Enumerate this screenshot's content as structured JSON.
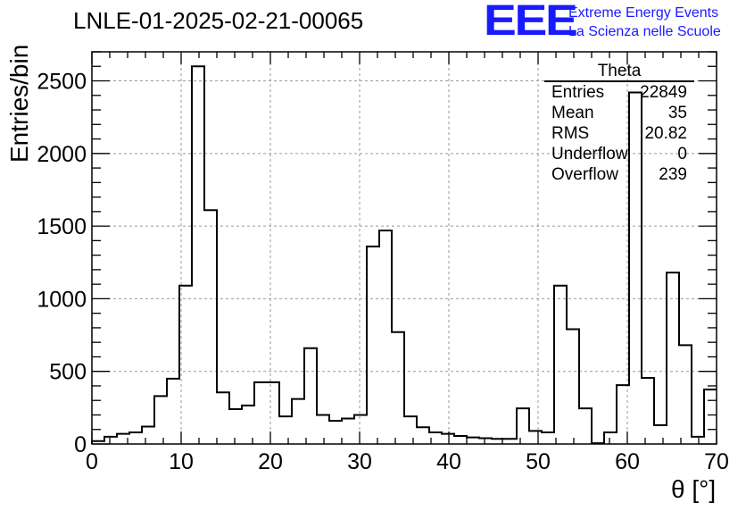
{
  "header": {
    "run_title": "LNLE-01-2025-02-21-00065",
    "logo_mark": "EEE",
    "logo_line1": "Extreme Energy Events",
    "logo_line2": "La Scienza nelle Scuole"
  },
  "stats_box": {
    "title": "Theta",
    "rows": [
      {
        "label": "Entries",
        "value": "22849"
      },
      {
        "label": "Mean",
        "value": "35"
      },
      {
        "label": "RMS",
        "value": "20.82"
      },
      {
        "label": "Underflow",
        "value": "0"
      },
      {
        "label": "Overflow",
        "value": "239"
      }
    ]
  },
  "colors": {
    "line": "#000000",
    "grid": "#9a9a9a",
    "logo": "#1a1aff"
  },
  "chart_data": {
    "type": "bar",
    "style": "step-histogram",
    "xlabel": "θ [°]",
    "ylabel": "Entries/bin",
    "xlim": [
      0,
      70
    ],
    "ylim": [
      0,
      2700
    ],
    "bin_width": 1.4,
    "x_ticks": [
      0,
      10,
      20,
      30,
      40,
      50,
      60,
      70
    ],
    "y_ticks": [
      0,
      500,
      1000,
      1500,
      2000,
      2500
    ],
    "grid": true,
    "values": [
      20,
      50,
      70,
      80,
      120,
      330,
      450,
      1090,
      2600,
      1610,
      355,
      240,
      265,
      425,
      425,
      190,
      310,
      660,
      200,
      160,
      175,
      200,
      1360,
      1470,
      770,
      190,
      115,
      80,
      70,
      55,
      45,
      40,
      35,
      35,
      245,
      90,
      80,
      1090,
      790,
      245,
      5,
      80,
      405,
      2420,
      455,
      130,
      1180,
      680,
      50,
      375
    ]
  }
}
